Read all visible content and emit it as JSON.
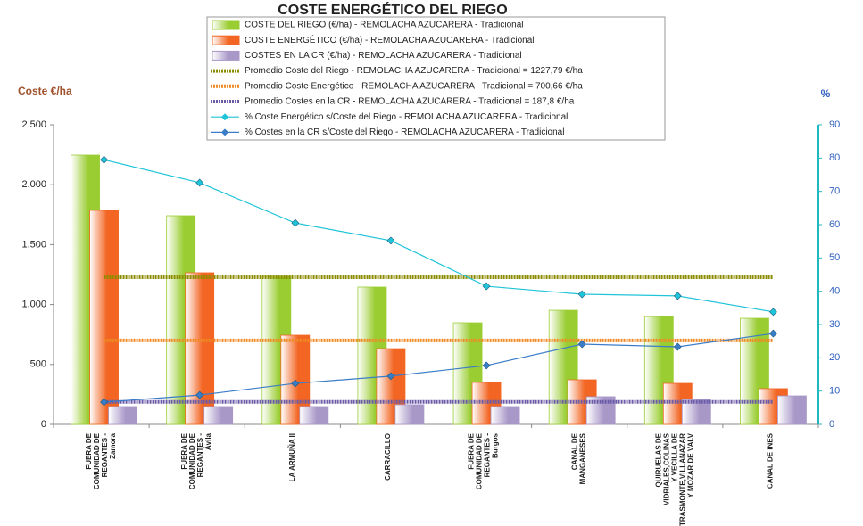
{
  "chart_data": {
    "type": "combo",
    "title": "COSTE ENERGÉTICO DEL RIEGO",
    "y_label": "Coste €/ha",
    "y2_label": "%",
    "categories": [
      "FUERA DE COMUNIDAD DE REGANTES - Zamora",
      "FUERA DE COMUNIDAD DE REGANTES - Ávila",
      "LA ARMUÑA II",
      "CARRACILLO",
      "FUERA DE COMUNIDAD DE REGANTES - Burgos",
      "CANAL DE MANGANESES",
      "QUIRUELAS DE VIDRIALES,COLINAS Y VECILLA DE TRASMONTE,VILLANAZAR Y MOZAR DE VALV",
      "CANAL DE INES"
    ],
    "series": [
      {
        "name": "COSTE DEL RIEGO (€/ha) - REMOLACHA AZUCARERA - Tradicional",
        "kind": "bar",
        "color": "#9acd32",
        "values": [
          2247,
          1741,
          1235,
          1146,
          848,
          952,
          900,
          885
        ]
      },
      {
        "name": "COSTE ENERGÉTICO (€/ha) - REMOLACHA AZUCARERA - Tradicional",
        "kind": "bar",
        "color": "#f26522",
        "values": [
          1786,
          1265,
          744,
          632,
          350,
          372,
          342,
          298
        ]
      },
      {
        "name": "COSTES EN LA CR (€/ha) - REMOLACHA AZUCARERA - Tradicional",
        "kind": "bar",
        "color": "#a898c8",
        "values": [
          149,
          149,
          149,
          164,
          149,
          231,
          208,
          238
        ]
      },
      {
        "name": "Promedio Coste del Riego - REMOLACHA AZUCARERA - Tradicional = 1227,79 €/ha",
        "kind": "average",
        "color": "#8c8c00",
        "value": 1227.79
      },
      {
        "name": "Promedio Coste Energético - REMOLACHA AZUCARERA - Tradicional = 700,66 €/ha",
        "kind": "average",
        "color": "#f08a24",
        "value": 700.66
      },
      {
        "name": "Promedio Costes en la CR - REMOLACHA AZUCARERA - Tradicional = 187,8 €/ha",
        "kind": "average",
        "color": "#6a5aa8",
        "value": 187.8
      },
      {
        "name": "% Coste Energético s/Coste del Riego - REMOLACHA AZUCARERA - Tradicional",
        "kind": "line",
        "axis": "y2",
        "color": "#20c4d8",
        "values": [
          79.5,
          72.6,
          60.5,
          55.2,
          41.5,
          39.1,
          38.6,
          33.8
        ]
      },
      {
        "name": "% Costes en la CR s/Coste del Riego - REMOLACHA AZUCARERA - Tradicional",
        "kind": "line",
        "axis": "y2",
        "color": "#3a7cc8",
        "values": [
          6.7,
          8.8,
          12.3,
          14.5,
          17.7,
          24.1,
          23.3,
          27.3
        ]
      }
    ],
    "ylim": [
      0,
      2500
    ],
    "yticks": [
      0,
      500,
      {
        "value": 1000,
        "label": "1.000"
      },
      {
        "value": 1500,
        "label": "1.500"
      },
      {
        "value": 2000,
        "label": "2.000"
      },
      {
        "value": 2500,
        "label": "2.500"
      }
    ],
    "y2lim": [
      0,
      90
    ],
    "y2ticks": [
      0,
      10,
      20,
      30,
      40,
      50,
      60,
      70,
      80,
      90
    ]
  }
}
